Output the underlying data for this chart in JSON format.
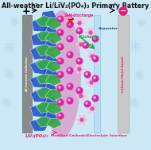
{
  "title": "All-weather Li/LiV₂(PO₄)₃ Primary Battery",
  "title_fontsize": 5.8,
  "bg_color": "#cce8f4",
  "snowflake_color": "#aad4ee",
  "al_collector_label": "Al Current Collector",
  "li_anode_label": "Lithium Metal Anode",
  "separator_label": "Separator",
  "cathode_label": "LiV₂(PO₄)₃",
  "interface_label": "Modified Cathode/Electrolyte Interface",
  "interface_color": "#e8187a",
  "self_discharge_label": "Self-discharge",
  "discharge_label": "Discharge",
  "cathode_blue": "#2255cc",
  "cathode_green": "#33aa44",
  "li_ion_color": "#e020a0",
  "separator_color": "#aed6f1",
  "pink_interface": "#e060b0"
}
